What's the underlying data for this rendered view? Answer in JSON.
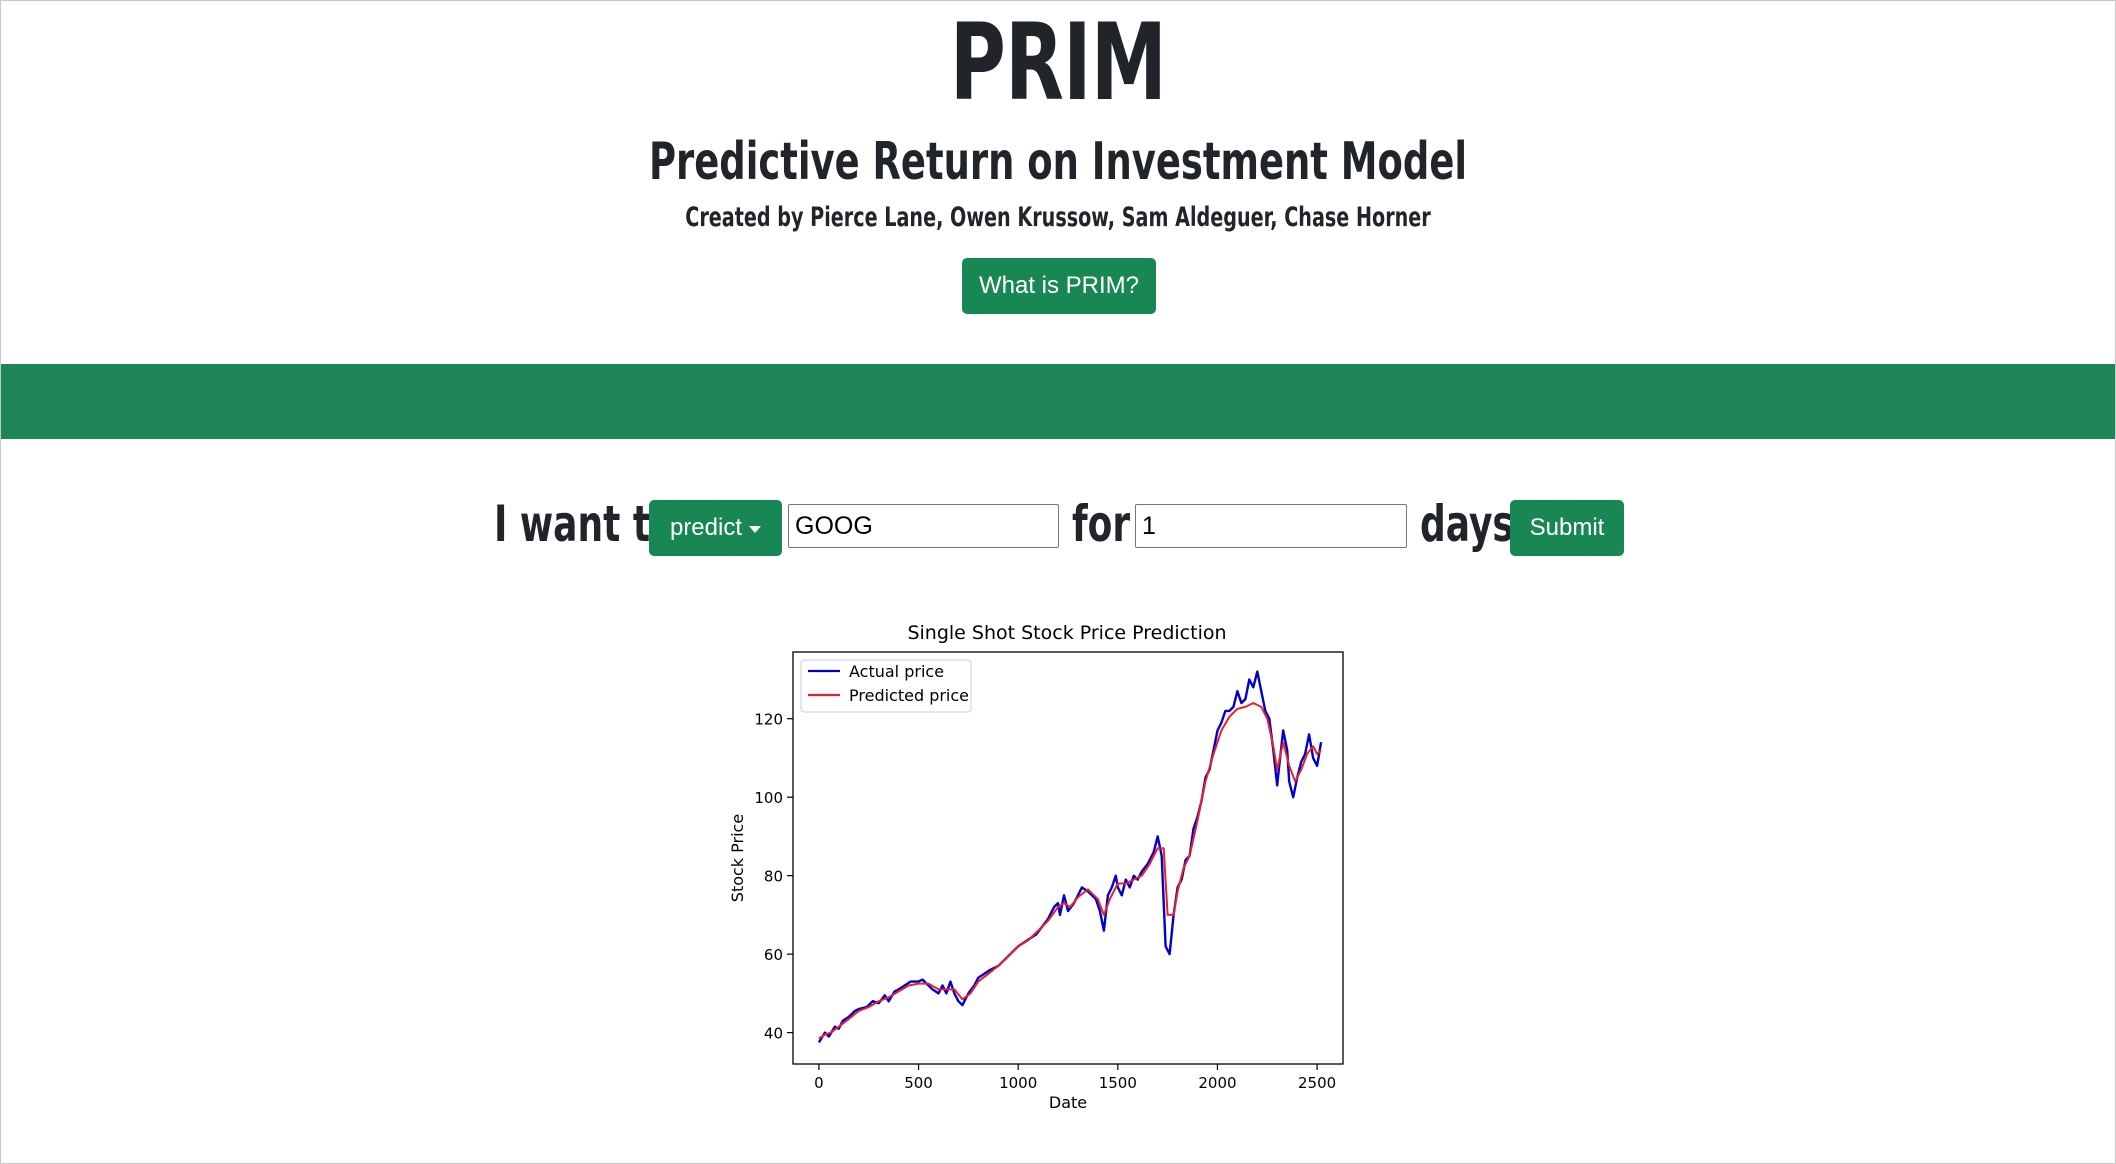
{
  "header": {
    "title": "PRIM",
    "subtitle": "Predictive Return on Investment Model",
    "credits": "Created by Pierce Lane, Owen Krussow, Sam Aldeguer, Chase Horner",
    "info_button": "What is PRIM?"
  },
  "form": {
    "prefix": "I want to",
    "action_selected": "predict",
    "ticker_value": "GOOG",
    "connector": "for",
    "days_value": "1",
    "suffix": "days",
    "submit_label": "Submit"
  },
  "colors": {
    "accent": "#198754",
    "band": "#1e8558",
    "actual_line": "#0000cc",
    "predicted_line": "#e8222a"
  },
  "chart_data": {
    "type": "line",
    "title": "Single Shot Stock Price Prediction",
    "xlabel": "Date",
    "ylabel": "Stock Price",
    "xlim": [
      -130,
      2630
    ],
    "ylim": [
      32,
      137
    ],
    "xticks": [
      "0",
      "500",
      "1000",
      "1500",
      "2000",
      "2500"
    ],
    "yticks": [
      "40",
      "60",
      "80",
      "100",
      "120"
    ],
    "legend_position": "top-left",
    "grid": false,
    "series": [
      {
        "name": "Actual price",
        "color": "#0000cc",
        "points": [
          [
            0,
            37.5
          ],
          [
            30,
            40
          ],
          [
            50,
            39
          ],
          [
            80,
            41.5
          ],
          [
            100,
            41
          ],
          [
            120,
            43
          ],
          [
            150,
            44
          ],
          [
            180,
            45.5
          ],
          [
            200,
            46
          ],
          [
            240,
            46.5
          ],
          [
            270,
            48
          ],
          [
            300,
            47.5
          ],
          [
            330,
            49.5
          ],
          [
            350,
            48
          ],
          [
            380,
            50.5
          ],
          [
            400,
            51
          ],
          [
            430,
            52
          ],
          [
            460,
            53
          ],
          [
            500,
            53
          ],
          [
            520,
            53.5
          ],
          [
            550,
            52
          ],
          [
            570,
            51
          ],
          [
            600,
            50
          ],
          [
            620,
            52
          ],
          [
            640,
            50
          ],
          [
            660,
            53
          ],
          [
            680,
            50
          ],
          [
            700,
            48
          ],
          [
            720,
            47
          ],
          [
            750,
            50
          ],
          [
            780,
            52
          ],
          [
            800,
            54
          ],
          [
            830,
            55
          ],
          [
            860,
            56
          ],
          [
            900,
            57
          ],
          [
            940,
            59
          ],
          [
            980,
            61
          ],
          [
            1000,
            62
          ],
          [
            1030,
            63
          ],
          [
            1060,
            64
          ],
          [
            1090,
            65
          ],
          [
            1120,
            67
          ],
          [
            1150,
            69
          ],
          [
            1180,
            72
          ],
          [
            1200,
            73
          ],
          [
            1210,
            70
          ],
          [
            1230,
            75
          ],
          [
            1250,
            71
          ],
          [
            1280,
            73
          ],
          [
            1300,
            75
          ],
          [
            1320,
            77
          ],
          [
            1350,
            76
          ],
          [
            1370,
            75
          ],
          [
            1390,
            74
          ],
          [
            1410,
            71
          ],
          [
            1430,
            66
          ],
          [
            1450,
            75
          ],
          [
            1470,
            77
          ],
          [
            1490,
            80
          ],
          [
            1500,
            77
          ],
          [
            1520,
            75
          ],
          [
            1540,
            79
          ],
          [
            1560,
            77
          ],
          [
            1580,
            80
          ],
          [
            1600,
            79
          ],
          [
            1620,
            81
          ],
          [
            1650,
            83
          ],
          [
            1680,
            86
          ],
          [
            1700,
            90
          ],
          [
            1720,
            85
          ],
          [
            1740,
            62
          ],
          [
            1760,
            60
          ],
          [
            1780,
            70
          ],
          [
            1800,
            77
          ],
          [
            1820,
            79
          ],
          [
            1840,
            84
          ],
          [
            1860,
            85
          ],
          [
            1880,
            92
          ],
          [
            1900,
            95
          ],
          [
            1920,
            99
          ],
          [
            1940,
            105
          ],
          [
            1960,
            107
          ],
          [
            1980,
            112
          ],
          [
            2000,
            117
          ],
          [
            2020,
            119
          ],
          [
            2040,
            122
          ],
          [
            2060,
            122
          ],
          [
            2080,
            123
          ],
          [
            2100,
            127
          ],
          [
            2120,
            124
          ],
          [
            2140,
            125
          ],
          [
            2160,
            130
          ],
          [
            2180,
            128
          ],
          [
            2200,
            132
          ],
          [
            2220,
            127
          ],
          [
            2240,
            122
          ],
          [
            2260,
            120
          ],
          [
            2280,
            112
          ],
          [
            2300,
            103
          ],
          [
            2310,
            108
          ],
          [
            2330,
            117
          ],
          [
            2350,
            112
          ],
          [
            2360,
            104
          ],
          [
            2380,
            100
          ],
          [
            2400,
            105
          ],
          [
            2420,
            109
          ],
          [
            2440,
            111
          ],
          [
            2460,
            116
          ],
          [
            2480,
            110
          ],
          [
            2500,
            108
          ],
          [
            2520,
            114
          ]
        ]
      },
      {
        "name": "Predicted price",
        "color": "#e8222a",
        "points": [
          [
            0,
            38.5
          ],
          [
            30,
            39.5
          ],
          [
            60,
            40
          ],
          [
            100,
            41.5
          ],
          [
            150,
            43.5
          ],
          [
            200,
            45.5
          ],
          [
            250,
            46.5
          ],
          [
            300,
            48
          ],
          [
            350,
            49
          ],
          [
            400,
            50.5
          ],
          [
            450,
            52
          ],
          [
            500,
            52.5
          ],
          [
            550,
            52.5
          ],
          [
            600,
            51
          ],
          [
            640,
            51
          ],
          [
            680,
            51
          ],
          [
            720,
            48.5
          ],
          [
            760,
            50
          ],
          [
            800,
            53
          ],
          [
            850,
            55
          ],
          [
            900,
            57
          ],
          [
            950,
            59.5
          ],
          [
            1000,
            62
          ],
          [
            1050,
            63.5
          ],
          [
            1100,
            66
          ],
          [
            1150,
            68.5
          ],
          [
            1200,
            72
          ],
          [
            1230,
            73
          ],
          [
            1260,
            72
          ],
          [
            1300,
            74.5
          ],
          [
            1350,
            76.5
          ],
          [
            1400,
            74
          ],
          [
            1430,
            70
          ],
          [
            1460,
            74
          ],
          [
            1500,
            78
          ],
          [
            1540,
            78
          ],
          [
            1580,
            79
          ],
          [
            1620,
            80
          ],
          [
            1660,
            83
          ],
          [
            1700,
            87
          ],
          [
            1730,
            87
          ],
          [
            1750,
            70
          ],
          [
            1780,
            70
          ],
          [
            1800,
            76
          ],
          [
            1830,
            82
          ],
          [
            1860,
            85
          ],
          [
            1900,
            94
          ],
          [
            1940,
            104
          ],
          [
            1980,
            111
          ],
          [
            2020,
            117
          ],
          [
            2060,
            120.5
          ],
          [
            2100,
            122.5
          ],
          [
            2140,
            123
          ],
          [
            2180,
            124
          ],
          [
            2220,
            123
          ],
          [
            2250,
            120
          ],
          [
            2280,
            113
          ],
          [
            2300,
            107
          ],
          [
            2330,
            114
          ],
          [
            2360,
            108
          ],
          [
            2390,
            104
          ],
          [
            2420,
            107
          ],
          [
            2450,
            111
          ],
          [
            2480,
            113
          ],
          [
            2500,
            111
          ],
          [
            2520,
            112
          ]
        ]
      }
    ]
  }
}
